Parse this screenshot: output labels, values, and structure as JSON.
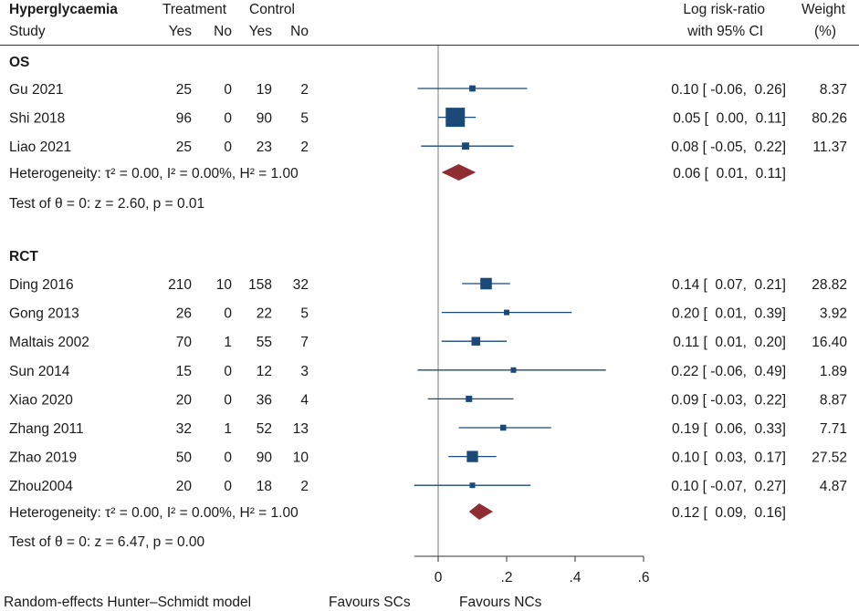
{
  "chart_data": {
    "type": "forest",
    "title": "Hyperglycaemia",
    "header": {
      "study_label": "Study",
      "treatment_label": "Treatment",
      "control_label": "Control",
      "yes_label": "Yes",
      "no_label": "No",
      "effect_label_line1": "Log risk-ratio",
      "effect_label_line2": "with 95% CI",
      "weight_label_line1": "Weight",
      "weight_label_line2": "(%)"
    },
    "x_axis": {
      "ticks": [
        0,
        0.2,
        0.4,
        0.6
      ],
      "tick_labels": [
        "0",
        ".2",
        ".4",
        ".6"
      ],
      "xlim": [
        -0.07,
        0.6
      ]
    },
    "footer": {
      "model_label": "Random-effects Hunter–Schmidt model",
      "left_favour": "Favours SCs",
      "right_favour": "Favours NCs"
    },
    "groups": [
      {
        "name": "OS",
        "studies": [
          {
            "study": "Gu 2021",
            "t_yes": "25",
            "t_no": "0",
            "c_yes": "19",
            "c_no": "2",
            "est": 0.1,
            "lo": -0.06,
            "hi": 0.26,
            "ci_text": "0.10 [ -0.06,  0.26]",
            "weight": 8.37,
            "weight_text": "8.37"
          },
          {
            "study": "Shi 2018",
            "t_yes": "96",
            "t_no": "0",
            "c_yes": "90",
            "c_no": "5",
            "est": 0.05,
            "lo": 0.0,
            "hi": 0.11,
            "ci_text": "0.05 [  0.00,  0.11]",
            "weight": 80.26,
            "weight_text": "80.26"
          },
          {
            "study": "Liao 2021",
            "t_yes": "25",
            "t_no": "0",
            "c_yes": "23",
            "c_no": "2",
            "est": 0.08,
            "lo": -0.05,
            "hi": 0.22,
            "ci_text": "0.08 [ -0.05,  0.22]",
            "weight": 11.37,
            "weight_text": "11.37"
          }
        ],
        "heterogeneity": "Heterogeneity: τ² = 0.00, I² = 0.00%, H² = 1.00",
        "pooled": {
          "est": 0.06,
          "lo": 0.01,
          "hi": 0.11,
          "ci_text": "0.06 [  0.01,  0.11]"
        },
        "test": "Test of θ = 0: z = 2.60, p = 0.01"
      },
      {
        "name": "RCT",
        "studies": [
          {
            "study": "Ding 2016",
            "t_yes": "210",
            "t_no": "10",
            "c_yes": "158",
            "c_no": "32",
            "est": 0.14,
            "lo": 0.07,
            "hi": 0.21,
            "ci_text": "0.14 [  0.07,  0.21]",
            "weight": 28.82,
            "weight_text": "28.82"
          },
          {
            "study": "Gong 2013",
            "t_yes": "26",
            "t_no": "0",
            "c_yes": "22",
            "c_no": "5",
            "est": 0.2,
            "lo": 0.01,
            "hi": 0.39,
            "ci_text": "0.20 [  0.01,  0.39]",
            "weight": 3.92,
            "weight_text": "3.92"
          },
          {
            "study": "Maltais 2002",
            "t_yes": "70",
            "t_no": "1",
            "c_yes": "55",
            "c_no": "7",
            "est": 0.11,
            "lo": 0.01,
            "hi": 0.2,
            "ci_text": "0.11 [  0.01,  0.20]",
            "weight": 16.4,
            "weight_text": "16.40"
          },
          {
            "study": "Sun 2014",
            "t_yes": "15",
            "t_no": "0",
            "c_yes": "12",
            "c_no": "3",
            "est": 0.22,
            "lo": -0.06,
            "hi": 0.49,
            "ci_text": "0.22 [ -0.06,  0.49]",
            "weight": 1.89,
            "weight_text": "1.89"
          },
          {
            "study": "Xiao 2020",
            "t_yes": "20",
            "t_no": "0",
            "c_yes": "36",
            "c_no": "4",
            "est": 0.09,
            "lo": -0.03,
            "hi": 0.22,
            "ci_text": "0.09 [ -0.03,  0.22]",
            "weight": 8.87,
            "weight_text": "8.87"
          },
          {
            "study": "Zhang 2011",
            "t_yes": "32",
            "t_no": "1",
            "c_yes": "52",
            "c_no": "13",
            "est": 0.19,
            "lo": 0.06,
            "hi": 0.33,
            "ci_text": "0.19 [  0.06,  0.33]",
            "weight": 7.71,
            "weight_text": "7.71"
          },
          {
            "study": "Zhao 2019",
            "t_yes": "50",
            "t_no": "0",
            "c_yes": "90",
            "c_no": "10",
            "est": 0.1,
            "lo": 0.03,
            "hi": 0.17,
            "ci_text": "0.10 [  0.03,  0.17]",
            "weight": 27.52,
            "weight_text": "27.52"
          },
          {
            "study": "Zhou2004",
            "t_yes": "20",
            "t_no": "0",
            "c_yes": "18",
            "c_no": "2",
            "est": 0.1,
            "lo": -0.07,
            "hi": 0.27,
            "ci_text": "0.10 [ -0.07,  0.27]",
            "weight": 4.87,
            "weight_text": "4.87"
          }
        ],
        "heterogeneity": "Heterogeneity: τ² = 0.00, I² = 0.00%, H² = 1.00",
        "pooled": {
          "est": 0.12,
          "lo": 0.09,
          "hi": 0.16,
          "ci_text": "0.12 [  0.09,  0.16]"
        },
        "test": "Test of θ = 0: z = 6.47, p = 0.00"
      }
    ],
    "colors": {
      "marker": "#1c4a78",
      "diamond": "#8e2e33",
      "axis": "#333333",
      "null_line": "#777777"
    }
  }
}
